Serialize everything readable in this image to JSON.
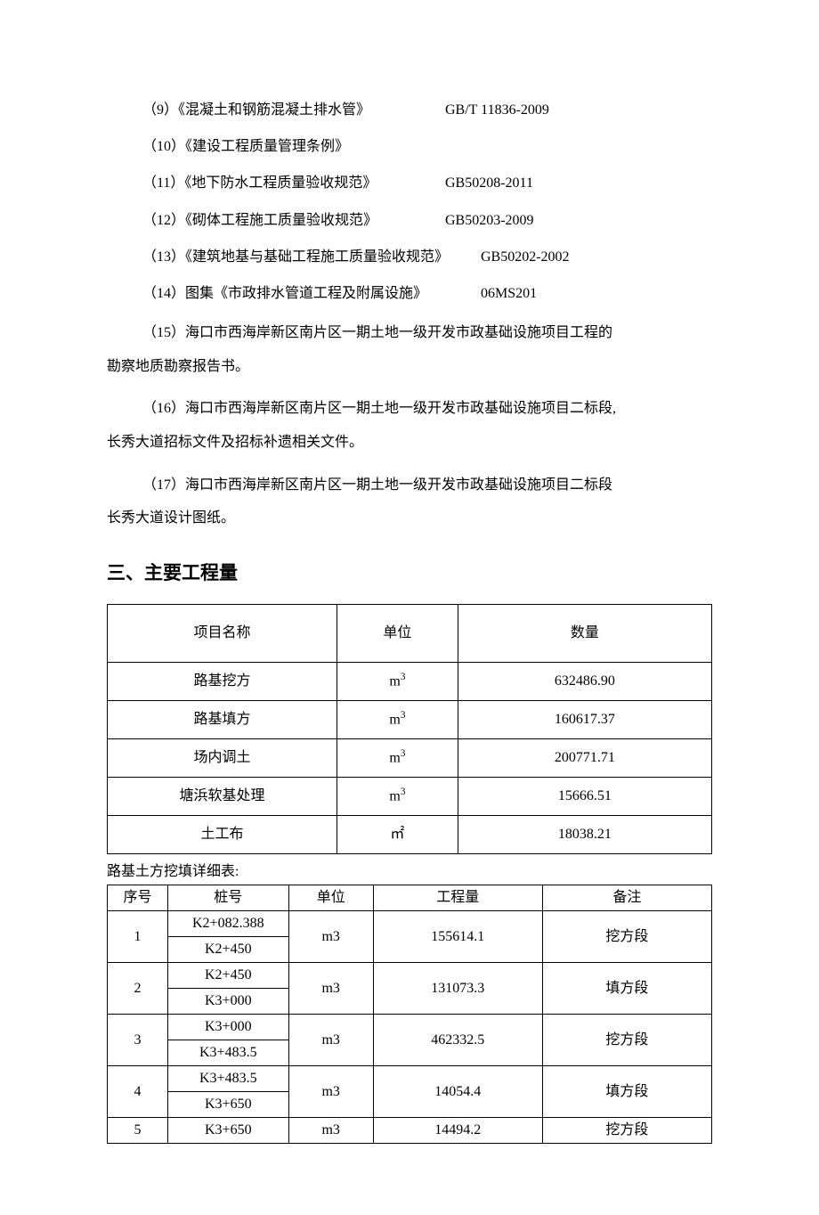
{
  "specs": [
    {
      "title": "（9）《混凝土和钢筋混凝土排水管》",
      "code": "GB/T 11836-2009"
    },
    {
      "title": "（10）《建设工程质量管理条例》",
      "code": ""
    },
    {
      "title": "（11）《地下防水工程质量验收规范》",
      "code": "GB50208-2011"
    },
    {
      "title": "（12）《砌体工程施工质量验收规范》",
      "code": "GB50203-2009"
    },
    {
      "title": "（13）《建筑地基与基础工程施工质量验收规范》",
      "code": "GB50202-2002"
    },
    {
      "title": "（14）图集《市政排水管道工程及附属设施》",
      "code": "06MS201"
    }
  ],
  "para15_lead": "（15）海口市西海岸新区南片区一期土地一级开发市政基础设施项目工程的",
  "para15_cont": "勘察地质勘察报告书。",
  "para16_lead": "（16）海口市西海岸新区南片区一期土地一级开发市政基础设施项目二标段,",
  "para16_cont": "长秀大道招标文件及招标补遗相关文件。",
  "para17_lead": "（17）海口市西海岸新区南片区一期土地一级开发市政基础设施项目二标段",
  "para17_cont": "长秀大道设计图纸。",
  "section_heading": "三、主要工程量",
  "table_main": {
    "headers": {
      "name": "项目名称",
      "unit": "单位",
      "qty": "数量"
    },
    "rows": [
      {
        "name": "路基挖方",
        "unit_html": "m<sup>3</sup>",
        "qty": "632486.90"
      },
      {
        "name": "路基填方",
        "unit_html": "m<sup>3</sup>",
        "qty": "160617.37"
      },
      {
        "name": "场内调土",
        "unit_html": "m<sup>3</sup>",
        "qty": "200771.71"
      },
      {
        "name": "塘浜软基处理",
        "unit_html": "m<sup>3</sup>",
        "qty": "15666.51"
      },
      {
        "name": "土工布",
        "unit_html": "㎡",
        "qty": "18038.21"
      }
    ]
  },
  "detail_caption": "路基土方挖填详细表:",
  "table_detail": {
    "headers": {
      "seq": "序号",
      "pile": "桩号",
      "unit": "单位",
      "amt": "工程量",
      "note": "备注"
    },
    "rows": [
      {
        "seq": "1",
        "pile_top": "K2+082.388",
        "pile_bot": "K2+450",
        "unit": "m3",
        "amt": "155614.1",
        "note": "挖方段"
      },
      {
        "seq": "2",
        "pile_top": "K2+450",
        "pile_bot": "K3+000",
        "unit": "m3",
        "amt": "131073.3",
        "note": "填方段"
      },
      {
        "seq": "3",
        "pile_top": "K3+000",
        "pile_bot": "K3+483.5",
        "unit": "m3",
        "amt": "462332.5",
        "note": "挖方段"
      },
      {
        "seq": "4",
        "pile_top": "K3+483.5",
        "pile_bot": "K3+650",
        "unit": "m3",
        "amt": "14054.4",
        "note": "填方段"
      },
      {
        "seq": "5",
        "pile_single": "K3+650",
        "unit": "m3",
        "amt": "14494.2",
        "note": "挖方段"
      }
    ]
  }
}
